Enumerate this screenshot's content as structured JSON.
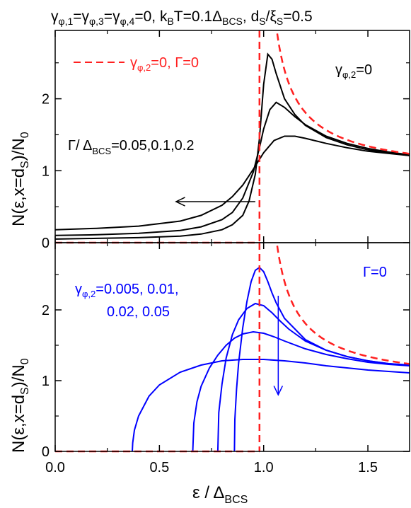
{
  "figure": {
    "title_parts": {
      "g1": "γ",
      "s1": "φ,1",
      "eq1": "=",
      "g3": "γ",
      "s3": "φ,3",
      "eq3": "=",
      "g4": "γ",
      "s4": "φ,4",
      "rest1": "=0, k",
      "sB": "B",
      "rest2": "T=0.1Δ",
      "sBCS": "BCS",
      "rest3": ", d",
      "sS": "S",
      "rest4": "/ξ",
      "sS2": "S",
      "rest5": "=0.5"
    },
    "xlabel_parts": {
      "main": "ε / Δ",
      "sub": "BCS"
    },
    "ylabel_parts": {
      "main": "N(ε,x=d",
      "sub": "S",
      "tail": ")/N",
      "sub2": "0"
    }
  },
  "chart_data": [
    {
      "type": "line",
      "panel": "top",
      "xlim": [
        0.0,
        1.7
      ],
      "ylim": [
        0.0,
        2.95
      ],
      "x_ticks": [
        0.0,
        0.5,
        1.0,
        1.5
      ],
      "x_tick_labels": [
        "0.0",
        "0.5",
        "1.0",
        "1.5"
      ],
      "y_ticks": [
        0,
        1,
        2
      ],
      "y_tick_labels": [
        "0",
        "1",
        "2"
      ],
      "grid": false,
      "legend": {
        "placement": "top-left",
        "main": "γ",
        "sub": "φ,2",
        "tail": "=0, Γ=0",
        "color": "#ff2020"
      },
      "annotations": {
        "gamma_title": {
          "main": "γ",
          "sub": "φ,2",
          "tail": "=0"
        },
        "gamma_values": {
          "main": "Γ/ Δ",
          "sub": "BCS",
          "tail": "=0.05,0.1,0.2"
        },
        "arrow": {
          "from": [
            0.96,
            0.57
          ],
          "to": [
            0.58,
            0.57
          ]
        }
      },
      "colors": {
        "curves": "#000000",
        "reference": "#ff2020"
      },
      "series": [
        {
          "Gamma": 0.05,
          "x": [
            0.0,
            0.2,
            0.4,
            0.6,
            0.7,
            0.8,
            0.85,
            0.9,
            0.93,
            0.96,
            0.98,
            1.0,
            1.02,
            1.04,
            1.06,
            1.1,
            1.15,
            1.2,
            1.3,
            1.4,
            1.5,
            1.6,
            1.7
          ],
          "y": [
            0.05,
            0.06,
            0.07,
            0.09,
            0.12,
            0.18,
            0.25,
            0.38,
            0.58,
            0.95,
            1.45,
            2.2,
            2.62,
            2.55,
            2.35,
            2.0,
            1.78,
            1.63,
            1.46,
            1.36,
            1.29,
            1.25,
            1.21
          ]
        },
        {
          "Gamma": 0.1,
          "x": [
            0.0,
            0.2,
            0.4,
            0.6,
            0.7,
            0.8,
            0.85,
            0.9,
            0.95,
            0.98,
            1.0,
            1.03,
            1.06,
            1.1,
            1.15,
            1.2,
            1.3,
            1.4,
            1.5,
            1.6,
            1.7
          ],
          "y": [
            0.1,
            0.11,
            0.13,
            0.17,
            0.22,
            0.32,
            0.42,
            0.62,
            0.98,
            1.32,
            1.58,
            1.85,
            1.95,
            1.88,
            1.75,
            1.64,
            1.48,
            1.38,
            1.31,
            1.26,
            1.22
          ]
        },
        {
          "Gamma": 0.2,
          "x": [
            0.0,
            0.2,
            0.4,
            0.6,
            0.7,
            0.8,
            0.85,
            0.9,
            0.95,
            1.0,
            1.05,
            1.1,
            1.15,
            1.2,
            1.3,
            1.4,
            1.5,
            1.6,
            1.7
          ],
          "y": [
            0.18,
            0.2,
            0.23,
            0.3,
            0.38,
            0.52,
            0.64,
            0.8,
            1.02,
            1.25,
            1.42,
            1.48,
            1.48,
            1.45,
            1.38,
            1.32,
            1.27,
            1.24,
            1.21
          ]
        }
      ]
    },
    {
      "type": "line",
      "panel": "bottom",
      "xlim": [
        0.0,
        1.7
      ],
      "ylim": [
        0.0,
        2.95
      ],
      "x_ticks": [
        0.0,
        0.5,
        1.0,
        1.5
      ],
      "x_tick_labels": [
        "0.0",
        "0.5",
        "1.0",
        "1.5"
      ],
      "y_ticks": [
        0,
        1,
        2
      ],
      "y_tick_labels": [
        "0",
        "1",
        "2"
      ],
      "grid": false,
      "annotations": {
        "gamma_title": "Γ=0",
        "gamma_values": {
          "main": "γ",
          "sub": "φ,2",
          "tail": "=0.005, 0.01,",
          "line2": "0.02, 0.05"
        },
        "arrow": {
          "from": [
            1.07,
            2.2
          ],
          "to": [
            1.07,
            0.8
          ]
        }
      },
      "colors": {
        "curves": "#0000ff",
        "reference": "#ff2020"
      },
      "series": [
        {
          "gamma_phi2": 0.005,
          "x": [
            0.86,
            0.862,
            0.87,
            0.88,
            0.9,
            0.92,
            0.94,
            0.96,
            0.98,
            1.0,
            1.02,
            1.04,
            1.06,
            1.1,
            1.2,
            1.3,
            1.4,
            1.5,
            1.6,
            1.7
          ],
          "y": [
            0.0,
            0.45,
            0.88,
            1.25,
            1.75,
            2.12,
            2.4,
            2.56,
            2.6,
            2.54,
            2.4,
            2.24,
            2.1,
            1.88,
            1.58,
            1.43,
            1.34,
            1.28,
            1.24,
            1.22
          ]
        },
        {
          "gamma_phi2": 0.01,
          "x": [
            0.78,
            0.785,
            0.8,
            0.82,
            0.85,
            0.88,
            0.92,
            0.96,
            1.0,
            1.04,
            1.08,
            1.12,
            1.2,
            1.3,
            1.4,
            1.5,
            1.6,
            1.7
          ],
          "y": [
            0.0,
            0.55,
            0.95,
            1.32,
            1.65,
            1.86,
            2.02,
            2.09,
            2.06,
            1.96,
            1.84,
            1.73,
            1.56,
            1.43,
            1.34,
            1.28,
            1.24,
            1.22
          ]
        },
        {
          "gamma_phi2": 0.02,
          "x": [
            0.66,
            0.665,
            0.68,
            0.7,
            0.74,
            0.78,
            0.82,
            0.86,
            0.9,
            0.95,
            1.0,
            1.05,
            1.1,
            1.2,
            1.3,
            1.4,
            1.5,
            1.6,
            1.7
          ],
          "y": [
            0.0,
            0.4,
            0.7,
            0.92,
            1.18,
            1.36,
            1.5,
            1.6,
            1.66,
            1.69,
            1.67,
            1.62,
            1.56,
            1.45,
            1.37,
            1.31,
            1.26,
            1.23,
            1.21
          ]
        },
        {
          "gamma_phi2": 0.05,
          "x": [
            0.37,
            0.372,
            0.38,
            0.4,
            0.45,
            0.5,
            0.6,
            0.7,
            0.8,
            0.9,
            1.0,
            1.1,
            1.2,
            1.3,
            1.4,
            1.5,
            1.6,
            1.7
          ],
          "y": [
            0.0,
            0.12,
            0.3,
            0.5,
            0.78,
            0.94,
            1.12,
            1.22,
            1.28,
            1.3,
            1.3,
            1.28,
            1.25,
            1.21,
            1.18,
            1.15,
            1.13,
            1.11
          ]
        }
      ]
    }
  ]
}
